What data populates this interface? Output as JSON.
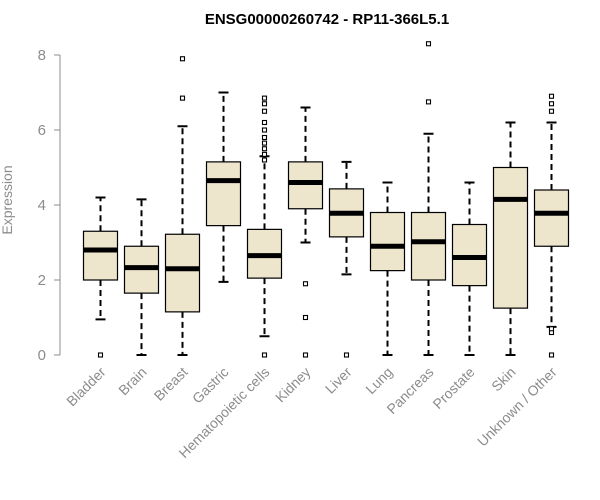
{
  "chart_data": {
    "type": "boxplot",
    "title": "ENSG00000260742 - RP11-366L5.1",
    "xlabel": "",
    "ylabel": "Expression",
    "ylim": [
      0,
      8.4
    ],
    "yticks": [
      0,
      2,
      4,
      6,
      8
    ],
    "box_fill": "#ede6cc",
    "axis_color": "#8c8c8c",
    "categories": [
      "Bladder",
      "Brain",
      "Breast",
      "Gastric",
      "Hematopoietic cells",
      "Kidney",
      "Liver",
      "Lung",
      "Pancreas",
      "Prostate",
      "Skin",
      "Unknown / Other"
    ],
    "boxes": [
      {
        "name": "Bladder",
        "whisker_low": 0.95,
        "q1": 2.0,
        "median": 2.8,
        "q3": 3.3,
        "whisker_high": 4.2,
        "outliers": [
          0
        ]
      },
      {
        "name": "Brain",
        "whisker_low": 0,
        "q1": 1.65,
        "median": 2.33,
        "q3": 2.9,
        "whisker_high": 4.15,
        "outliers": []
      },
      {
        "name": "Breast",
        "whisker_low": 0,
        "q1": 1.15,
        "median": 2.3,
        "q3": 3.22,
        "whisker_high": 6.1,
        "outliers": [
          6.85,
          7.9
        ]
      },
      {
        "name": "Gastric",
        "whisker_low": 1.95,
        "q1": 3.45,
        "median": 4.65,
        "q3": 5.15,
        "whisker_high": 7.0,
        "outliers": []
      },
      {
        "name": "Hematopoietic cells",
        "whisker_low": 0.5,
        "q1": 2.05,
        "median": 2.65,
        "q3": 3.35,
        "whisker_high": 5.3,
        "outliers": [
          0,
          5.2,
          5.35,
          5.5,
          5.65,
          5.8,
          6.0,
          6.2,
          6.5,
          6.7,
          6.85
        ]
      },
      {
        "name": "Kidney",
        "whisker_low": 3.0,
        "q1": 3.9,
        "median": 4.6,
        "q3": 5.15,
        "whisker_high": 6.6,
        "outliers": [
          0,
          1.0,
          1.9
        ]
      },
      {
        "name": "Liver",
        "whisker_low": 2.15,
        "q1": 3.15,
        "median": 3.78,
        "q3": 4.43,
        "whisker_high": 5.15,
        "outliers": [
          0
        ]
      },
      {
        "name": "Lung",
        "whisker_low": 0,
        "q1": 2.25,
        "median": 2.9,
        "q3": 3.8,
        "whisker_high": 4.6,
        "outliers": []
      },
      {
        "name": "Pancreas",
        "whisker_low": 0,
        "q1": 2.0,
        "median": 3.02,
        "q3": 3.8,
        "whisker_high": 5.9,
        "outliers": [
          6.75,
          8.3
        ]
      },
      {
        "name": "Prostate",
        "whisker_low": 0,
        "q1": 1.85,
        "median": 2.6,
        "q3": 3.48,
        "whisker_high": 4.6,
        "outliers": []
      },
      {
        "name": "Skin",
        "whisker_low": 0,
        "q1": 1.25,
        "median": 4.15,
        "q3": 5.0,
        "whisker_high": 6.2,
        "outliers": []
      },
      {
        "name": "Unknown / Other",
        "whisker_low": 0.75,
        "q1": 2.9,
        "median": 3.78,
        "q3": 4.4,
        "whisker_high": 6.2,
        "outliers": [
          0,
          0.6,
          0.7,
          6.5,
          6.7,
          6.9
        ]
      }
    ]
  }
}
